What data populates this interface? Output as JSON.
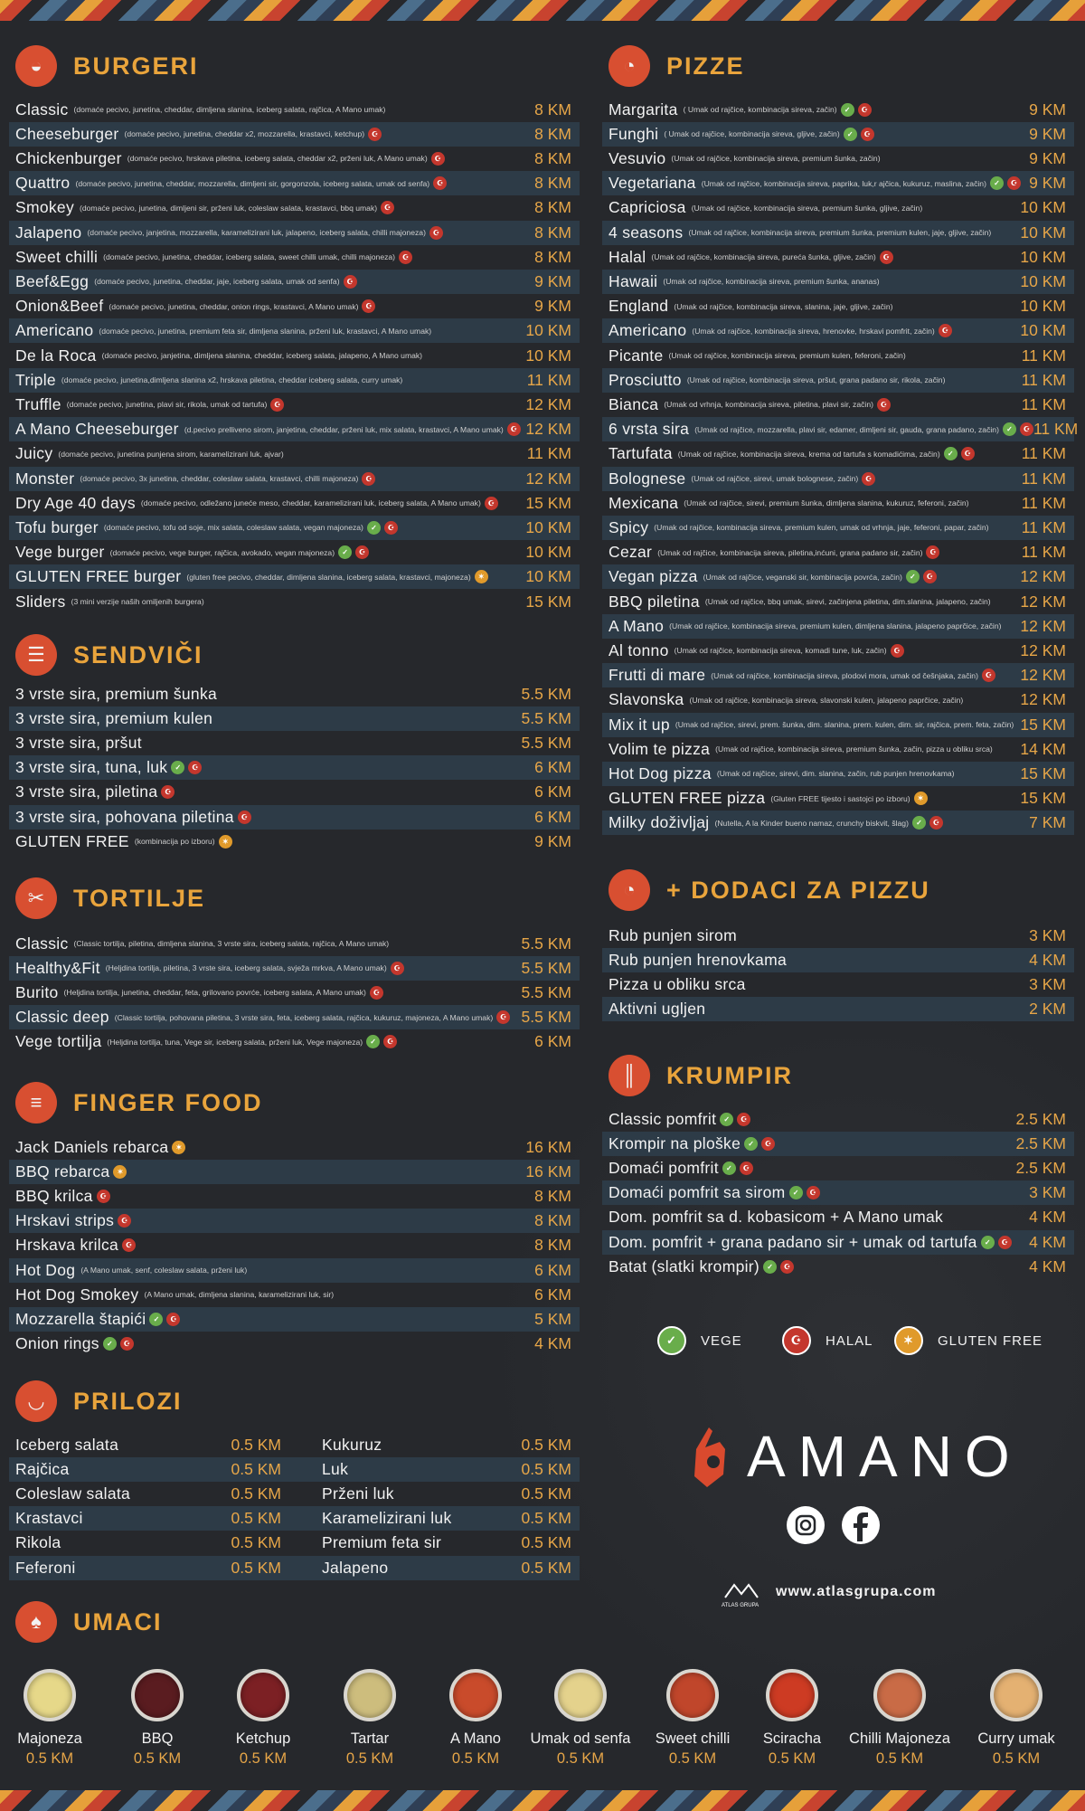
{
  "sections": [
    {
      "title": "BURGERI",
      "icon": "burger",
      "items": [
        {
          "name": "Classic",
          "desc": "(domaće pecivo, junetina, cheddar, dimljena slanina, iceberg salata, rajčica, A Mano umak)",
          "icons": [],
          "price": "8 KM"
        },
        {
          "name": "Cheeseburger",
          "desc": "(domaće pecivo, junetina, cheddar x2, mozzarella, krastavci, ketchup)",
          "icons": [
            "halal"
          ],
          "price": "8 KM"
        },
        {
          "name": "Chickenburger",
          "desc": "(domaće pecivo, hrskava piletina, iceberg salata, cheddar x2, prženi luk, A Mano umak)",
          "icons": [
            "halal"
          ],
          "price": "8 KM"
        },
        {
          "name": "Quattro",
          "desc": "(domaće pecivo, junetina, cheddar, mozzarella, dimljeni sir, gorgonzola, iceberg salata, umak od senfa)",
          "icons": [
            "halal"
          ],
          "price": "8 KM"
        },
        {
          "name": "Smokey",
          "desc": "(domaće pecivo, junetina, dimljeni sir, prženi luk, coleslaw salata, krastavci, bbq umak)",
          "icons": [
            "halal"
          ],
          "price": "8 KM"
        },
        {
          "name": "Jalapeno",
          "desc": "(domaće pecivo, janjetina, mozzarella, karamelizirani luk, jalapeno, iceberg salata, chilli majoneza)",
          "icons": [
            "halal"
          ],
          "price": "8 KM"
        },
        {
          "name": "Sweet chilli",
          "desc": "(domaće pecivo, junetina, cheddar, iceberg salata, sweet chilli umak, chilli majoneza)",
          "icons": [
            "halal"
          ],
          "price": "8 KM"
        },
        {
          "name": "Beef&Egg",
          "desc": "(domaće pecivo, junetina, cheddar, jaje, iceberg salata, umak od senfa)",
          "icons": [
            "halal"
          ],
          "price": "9 KM"
        },
        {
          "name": "Onion&Beef",
          "desc": "(domaće pecivo, junetina, cheddar, onion rings, krastavci, A Mano umak)",
          "icons": [
            "halal"
          ],
          "price": "9 KM"
        },
        {
          "name": "Americano",
          "desc": "(domaće pecivo, junetina, premium feta sir, dimljena slanina, prženi luk, krastavci, A Mano umak)",
          "icons": [],
          "price": "10 KM"
        },
        {
          "name": "De la Roca",
          "desc": "(domaće pecivo, janjetina, dimljena slanina, cheddar, iceberg salata, jalapeno, A Mano umak)",
          "icons": [],
          "price": "10 KM"
        },
        {
          "name": "Triple",
          "desc": "(domaće pecivo, junetina,dimljena slanina x2, hrskava piletina, cheddar iceberg salata, curry umak)",
          "icons": [],
          "price": "11 KM"
        },
        {
          "name": "Truffle",
          "desc": "(domaće pecivo, junetina, plavi sir, rikola, umak od tartufa)",
          "icons": [
            "halal"
          ],
          "price": "12 KM"
        },
        {
          "name": "A Mano Cheeseburger",
          "desc": "(d.pecivo prelliveno sirom, janjetina, cheddar, prženi luk, mix salata, krastavci, A Mano umak)",
          "icons": [
            "halal"
          ],
          "price": "12 KM"
        },
        {
          "name": "Juicy",
          "desc": "(domaće pecivo, junetina punjena sirom, karamelizirani luk, ajvar)",
          "icons": [],
          "price": "11 KM"
        },
        {
          "name": "Monster",
          "desc": "(domaće pecivo, 3x junetina, cheddar, coleslaw salata, krastavci, chilli majoneza)",
          "icons": [
            "halal"
          ],
          "price": "12 KM"
        },
        {
          "name": "Dry Age 40 days",
          "desc": "(domaće pecivo, odležano juneće meso, cheddar, karamelizirani luk, iceberg salata, A Mano umak)",
          "icons": [
            "halal"
          ],
          "price": "15 KM"
        },
        {
          "name": "Tofu burger",
          "desc": "(domaće pecivo, tofu od soje, mix salata, coleslaw salata, vegan majoneza)",
          "icons": [
            "vege",
            "halal"
          ],
          "price": "10 KM"
        },
        {
          "name": "Vege burger",
          "desc": "(domaće pecivo, vege burger, rajčica, avokado, vegan majoneza)",
          "icons": [
            "vege",
            "halal"
          ],
          "price": "10 KM"
        },
        {
          "name": "GLUTEN FREE burger",
          "desc": "(gluten free pecivo, cheddar, dimljena slanina, iceberg salata, krastavci, majoneza)",
          "icons": [
            "gluten"
          ],
          "price": "10 KM"
        },
        {
          "name": "Sliders",
          "desc": "(3 mini verzije naših omiljenih burgera)",
          "icons": [],
          "price": "15 KM"
        }
      ]
    },
    {
      "title": "SENDVIČI",
      "icon": "sandwich",
      "items": [
        {
          "name": "3 vrste sira, premium šunka",
          "icons": [],
          "price": "5.5 KM"
        },
        {
          "name": "3 vrste sira, premium kulen",
          "icons": [],
          "price": "5.5 KM"
        },
        {
          "name": "3 vrste sira, pršut",
          "icons": [],
          "price": "5.5 KM"
        },
        {
          "name": "3 vrste sira, tuna, luk",
          "icons": [
            "vege",
            "halal"
          ],
          "price": "6 KM"
        },
        {
          "name": "3 vrste sira, piletina",
          "icons": [
            "halal"
          ],
          "price": "6 KM"
        },
        {
          "name": "3 vrste sira, pohovana piletina",
          "icons": [
            "halal"
          ],
          "price": "6 KM"
        },
        {
          "name": "GLUTEN FREE",
          "desc": "(kombinacija po izboru)",
          "icons": [
            "gluten"
          ],
          "price": "9 KM"
        }
      ]
    },
    {
      "title": "TORTILJE",
      "icon": "wrap",
      "items": [
        {
          "name": "Classic",
          "desc": "(Classic tortilja, piletina, dimljena slanina, 3 vrste sira, iceberg salata, rajčica, A Mano umak)",
          "icons": [],
          "price": "5.5 KM"
        },
        {
          "name": "Healthy&Fit",
          "desc": "(Heljdina tortilja, piletina, 3 vrste sira, iceberg salata, svježa mrkva, A Mano umak)",
          "icons": [
            "halal"
          ],
          "price": "5.5 KM"
        },
        {
          "name": "Burito",
          "desc": "(Heljdina tortilja, junetina, cheddar, feta, grilovano povrće, iceberg salata, A Mano umak)",
          "icons": [
            "halal"
          ],
          "price": "5.5 KM"
        },
        {
          "name": "Classic deep",
          "desc": "(Classic tortilja, pohovana piletina, 3 vrste sira, feta, iceberg salata, rajčica, kukuruz, majoneza, A Mano umak)",
          "icons": [
            "halal"
          ],
          "price": "5.5 KM"
        },
        {
          "name": "Vege tortilja",
          "desc": "(Heljdina tortilja, tuna, Vege sir, iceberg salata, prženi luk, Vege majoneza)",
          "icons": [
            "vege",
            "halal"
          ],
          "price": "6 KM"
        }
      ]
    },
    {
      "title": "FINGER FOOD",
      "icon": "skewer",
      "items": [
        {
          "name": "Jack Daniels rebarca",
          "icons": [
            "gluten"
          ],
          "price": "16 KM"
        },
        {
          "name": "BBQ rebarca",
          "icons": [
            "gluten"
          ],
          "price": "16 KM"
        },
        {
          "name": "BBQ krilca",
          "icons": [
            "halal"
          ],
          "price": "8 KM"
        },
        {
          "name": "Hrskavi strips",
          "icons": [
            "halal"
          ],
          "price": "8 KM"
        },
        {
          "name": "Hrskava krilca",
          "icons": [
            "halal"
          ],
          "price": "8 KM"
        },
        {
          "name": "Hot Dog",
          "desc": "(A Mano umak, senf, coleslaw salata, prženi luk)",
          "icons": [],
          "price": "6 KM"
        },
        {
          "name": "Hot Dog Smokey",
          "desc": "(A Mano umak, dimljena slanina, karamelizirani luk, sir)",
          "icons": [],
          "price": "6 KM"
        },
        {
          "name": "Mozzarella štapići",
          "icons": [
            "vege",
            "halal"
          ],
          "price": "5 KM"
        },
        {
          "name": "Onion rings",
          "icons": [
            "vege",
            "halal"
          ],
          "price": "4 KM"
        }
      ]
    },
    {
      "title": "PRILOZI",
      "icon": "salad",
      "items": [
        {
          "name": "Iceberg salata",
          "price": "0.5 KM"
        },
        {
          "name": "Rajčica",
          "price": "0.5 KM"
        },
        {
          "name": "Coleslaw salata",
          "price": "0.5 KM"
        },
        {
          "name": "Krastavci",
          "price": "0.5 KM"
        },
        {
          "name": "Rikola",
          "price": "0.5 KM"
        },
        {
          "name": "Feferoni",
          "price": "0.5 KM"
        },
        {
          "name": "Kukuruz",
          "price": "0.5 KM"
        },
        {
          "name": "Luk",
          "price": "0.5 KM"
        },
        {
          "name": "Prženi luk",
          "price": "0.5 KM"
        },
        {
          "name": "Karamelizirani luk",
          "price": "0.5 KM"
        },
        {
          "name": "Premium feta sir",
          "price": "0.5 KM"
        },
        {
          "name": "Jalapeno",
          "price": "0.5 KM"
        }
      ]
    },
    {
      "title": "UMACI",
      "icon": "sauce",
      "items": [
        {
          "name": "Majoneza",
          "price": "0.5 KM",
          "color": "#e6d889"
        },
        {
          "name": "BBQ",
          "price": "0.5 KM",
          "color": "#5a1c20"
        },
        {
          "name": "Ketchup",
          "price": "0.5 KM",
          "color": "#7c2024"
        },
        {
          "name": "Tartar",
          "price": "0.5 KM",
          "color": "#cdbd7d"
        },
        {
          "name": "A Mano",
          "price": "0.5 KM",
          "color": "#c94b2b"
        },
        {
          "name": "Umak od senfa",
          "price": "0.5 KM",
          "color": "#e4d28c"
        },
        {
          "name": "Sweet chilli",
          "price": "0.5 KM",
          "color": "#c0462b"
        },
        {
          "name": "Sciracha",
          "price": "0.5 KM",
          "color": "#cd3b23"
        },
        {
          "name": "Chilli Majoneza",
          "price": "0.5 KM",
          "color": "#c96b46"
        },
        {
          "name": "Curry umak",
          "price": "0.5 KM",
          "color": "#e4b172"
        }
      ]
    },
    {
      "title": "PIZZE",
      "icon": "pizza",
      "items": [
        {
          "name": "Margarita",
          "desc": "( Umak od rajčice, kombinacija sireva, začin)",
          "icons": [
            "vege",
            "halal"
          ],
          "price": "9 KM"
        },
        {
          "name": "Funghi",
          "desc": "( Umak od rajčice, kombinacija sireva, gljive, začin)",
          "icons": [
            "vege",
            "halal"
          ],
          "price": "9 KM"
        },
        {
          "name": "Vesuvio",
          "desc": "(Umak od rajčice, kombinacija sireva, premium šunka, začin)",
          "icons": [],
          "price": "9 KM"
        },
        {
          "name": "Vegetariana",
          "desc": "(Umak od rajčice, kombinacija sireva, paprika, luk,r ajčica, kukuruz, maslina, začin)",
          "icons": [
            "vege",
            "halal"
          ],
          "price": "9 KM"
        },
        {
          "name": "Capriciosa",
          "desc": "(Umak od rajčice, kombinacija sireva, premium šunka, gljive, začin)",
          "icons": [],
          "price": "10 KM"
        },
        {
          "name": "4 seasons",
          "desc": "(Umak od rajčice, kombinacija sireva, premium šunka, premium kulen, jaje, gljive, začin)",
          "icons": [],
          "price": "10 KM"
        },
        {
          "name": "Halal",
          "desc": "(Umak od rajčice, kombinacija sireva, pureća šunka, gljive, začin)",
          "icons": [
            "halal"
          ],
          "price": "10 KM"
        },
        {
          "name": "Hawaii",
          "desc": "(Umak od rajčice, kombinacija sireva, premium šunka, ananas)",
          "icons": [],
          "price": "10 KM"
        },
        {
          "name": "England",
          "desc": "(Umak od rajčice, kombinacija sireva, slanina, jaje, gljive, začin)",
          "icons": [],
          "price": "10 KM"
        },
        {
          "name": "Americano",
          "desc": "(Umak od rajčice, kombinacija sireva, hrenovke, hrskavi pomfrit, začin)",
          "icons": [
            "halal"
          ],
          "price": "10 KM"
        },
        {
          "name": "Picante",
          "desc": "(Umak od rajčice, kombinacija sireva, premium kulen, feferoni, začin)",
          "icons": [],
          "price": "11 KM"
        },
        {
          "name": "Prosciutto",
          "desc": "(Umak od rajčice, kombinacija sireva, pršut, grana padano sir, rikola, začin)",
          "icons": [],
          "price": "11 KM"
        },
        {
          "name": "Bianca",
          "desc": "(Umak od vrhnja, kombinacija sireva, piletina, plavi sir, začin)",
          "icons": [
            "halal"
          ],
          "price": "11 KM"
        },
        {
          "name": "6 vrsta sira",
          "desc": "(Umak od rajčice, mozzarella, plavi sir, edamer, dimljeni sir, gauda, grana padano, začin)",
          "icons": [
            "vege",
            "halal"
          ],
          "price": "11 KM"
        },
        {
          "name": "Tartufata",
          "desc": "(Umak od rajčice, kombinacija sireva, krema od tartufa s komadićima, začin)",
          "icons": [
            "vege",
            "halal"
          ],
          "price": "11 KM"
        },
        {
          "name": "Bolognese",
          "desc": "(Umak od rajčice, sirevi, umak bolognese, začin)",
          "icons": [
            "halal"
          ],
          "price": "11 KM"
        },
        {
          "name": "Mexicana",
          "desc": "(Umak od rajčice, sirevi, premium šunka, dimljena slanina, kukuruz, feferoni, začin)",
          "icons": [],
          "price": "11 KM"
        },
        {
          "name": "Spicy",
          "desc": "(Umak od rajčice, kombinacija sireva, premium kulen, umak od vrhnja, jaje, feferoni, papar, začin)",
          "icons": [],
          "price": "11 KM"
        },
        {
          "name": "Cezar",
          "desc": "(Umak od rajčice, kombinacija sireva, piletina,inćuni, grana padano sir, začin)",
          "icons": [
            "halal"
          ],
          "price": "11 KM"
        },
        {
          "name": "Vegan pizza",
          "desc": "(Umak od rajčice, veganski sir, kombinacija povrća, začin)",
          "icons": [
            "vege",
            "halal"
          ],
          "price": "12 KM"
        },
        {
          "name": "BBQ piletina",
          "desc": "(Umak od rajčice, bbq umak, sirevi, začinjena piletina, dim.slanina, jalapeno, začin)",
          "icons": [],
          "price": "12 KM"
        },
        {
          "name": "A Mano",
          "desc": "(Umak od rajčice, kombinacija sireva, premium kulen, dimljena slanina, jalapeno paprčice, začin)",
          "icons": [],
          "price": "12 KM"
        },
        {
          "name": "Al tonno",
          "desc": "(Umak od rajčice, kombinacija sireva, komadi tune, luk, začin)",
          "icons": [
            "halal"
          ],
          "price": "12 KM"
        },
        {
          "name": "Frutti di mare",
          "desc": "(Umak od rajčice, kombinacija sireva, plodovi mora, umak od češnjaka, začin)",
          "icons": [
            "halal"
          ],
          "price": "12 KM"
        },
        {
          "name": "Slavonska",
          "desc": "(Umak od rajčice, kombinacija sireva, slavonski kulen, jalapeno paprčice, začin)",
          "icons": [],
          "price": "12 KM"
        },
        {
          "name": "Mix it up",
          "desc": "(Umak od rajčice, sirevi, prem. šunka, dim. slanina, prem. kulen, dim. sir, rajčica, prem. feta, začin)",
          "icons": [],
          "price": "15 KM"
        },
        {
          "name": "Volim te pizza",
          "desc": "(Umak od rajčice, kombinacija sireva, premium šunka, začin, pizza u obliku srca)",
          "icons": [],
          "price": "14 KM"
        },
        {
          "name": "Hot Dog pizza",
          "desc": "(Umak od rajčice, sirevi, dim. slanina, začin, rub punjen hrenovkama)",
          "icons": [],
          "price": "15 KM"
        },
        {
          "name": "GLUTEN FREE pizza",
          "desc": "(Gluten FREE tijesto i sastojci po izboru)",
          "icons": [
            "gluten"
          ],
          "price": "15 KM"
        },
        {
          "name": "Milky doživljaj",
          "desc": "(Nutella, A la Kinder bueno namaz, crunchy biskvit, šlag)",
          "icons": [
            "vege",
            "halal"
          ],
          "price": "7 KM"
        }
      ]
    },
    {
      "title": "+ DODACI ZA PIZZU",
      "icon": "pizza",
      "items": [
        {
          "name": "Rub punjen sirom",
          "icons": [],
          "price": "3 KM"
        },
        {
          "name": "Rub punjen hrenovkama",
          "icons": [],
          "price": "4 KM"
        },
        {
          "name": "Pizza u obliku srca",
          "icons": [],
          "price": "3 KM"
        },
        {
          "name": "Aktivni ugljen",
          "icons": [],
          "price": "2 KM"
        }
      ]
    },
    {
      "title": "KRUMPIR",
      "icon": "fries",
      "items": [
        {
          "name": "Classic pomfrit",
          "icons": [
            "vege",
            "halal"
          ],
          "price": "2.5 KM"
        },
        {
          "name": "Krompir na ploške",
          "icons": [
            "vege",
            "halal"
          ],
          "price": "2.5 KM"
        },
        {
          "name": "Domaći pomfrit",
          "icons": [
            "vege",
            "halal"
          ],
          "price": "2.5 KM"
        },
        {
          "name": "Domaći pomfrit sa sirom",
          "icons": [
            "vege",
            "halal"
          ],
          "price": "3 KM"
        },
        {
          "name": "Dom. pomfrit sa d. kobasicom + A Mano umak",
          "icons": [],
          "price": "4 KM"
        },
        {
          "name": "Dom. pomfrit + grana padano sir + umak od tartufa",
          "icons": [
            "vege",
            "halal"
          ],
          "price": "4 KM"
        },
        {
          "name": "Batat (slatki krompir)",
          "icons": [
            "vege",
            "halal"
          ],
          "price": "4 KM"
        }
      ]
    }
  ],
  "legend": [
    {
      "label": "VEGE",
      "icon": "vege"
    },
    {
      "label": "HALAL",
      "icon": "halal"
    },
    {
      "label": "GLUTEN FREE",
      "icon": "gluten"
    }
  ],
  "brand": {
    "name": "AMANO",
    "atlas": "ATLAS GRUPA",
    "web": "www.atlasgrupa.com"
  }
}
